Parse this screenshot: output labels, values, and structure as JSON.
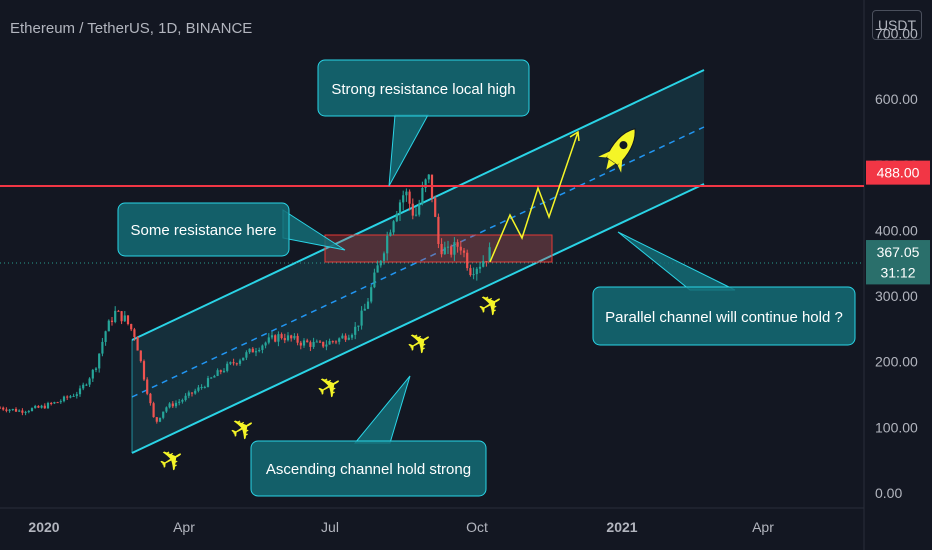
{
  "title": "Ethereum / TetherUS, 1D, BINANCE",
  "currency": "USDT",
  "chart_data": {
    "type": "candlestick",
    "title": "Ethereum / TetherUS, 1D, BINANCE",
    "ylim": [
      0,
      730
    ],
    "y_ticks": [
      0,
      100,
      200,
      300,
      400,
      500,
      600,
      700
    ],
    "y_tick_labels": [
      "0.00",
      "100.00",
      "200.00",
      "300.00",
      "400.00",
      "500.00",
      "600.00",
      "700.00"
    ],
    "x_ticks": [
      "2020",
      "Apr",
      "Jul",
      "Oct",
      "2021",
      "Apr"
    ],
    "price_markers": [
      {
        "label": "488.00",
        "value": 488,
        "color": "#f23645"
      },
      {
        "label": "367.05",
        "value": 367.05,
        "color": "#2a6f6b"
      },
      {
        "label": "31:12",
        "value": 336,
        "color": "#2a6f6b"
      }
    ],
    "annotations": {
      "resistance_high": "Strong resistance local high",
      "resistance_zone": "Some resistance here",
      "parallel_hold": "Parallel channel will continue hold ?",
      "ascending_hold": "Ascending channel hold strong"
    },
    "colors": {
      "up": "#26a69a",
      "down": "#ef5350",
      "channel": "#2ad4e6",
      "resistance": "#e53935",
      "projection": "#f5f527"
    }
  }
}
